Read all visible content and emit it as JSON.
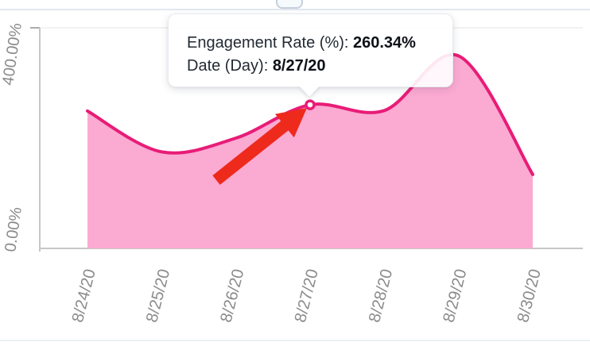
{
  "tooltip": {
    "line1_label": "Engagement Rate (%): ",
    "line1_value": "260.34%",
    "line2_label": "Date (Day): ",
    "line2_value": "8/27/20"
  },
  "chart_data": {
    "type": "area",
    "title": "",
    "xlabel": "Date (Day)",
    "ylabel": "Engagement Rate (%)",
    "categories": [
      "8/24/20",
      "8/25/20",
      "8/26/20",
      "8/27/20",
      "8/28/20",
      "8/29/20",
      "8/30/20"
    ],
    "series": [
      {
        "name": "Engagement Rate (%)",
        "values": [
          249,
          175,
          200,
          260.34,
          250,
          349,
          134
        ]
      }
    ],
    "ylim": [
      0,
      400
    ],
    "y_ticks": [
      {
        "value": 400,
        "label": "400.00%"
      },
      {
        "value": 0,
        "label": "0.00%"
      }
    ],
    "grid": "top-gridline-only",
    "legend": "none",
    "highlight_point": {
      "index": 3,
      "category": "8/27/20",
      "value": 260.34
    },
    "annotation": {
      "type": "arrow",
      "points_at": "8/27/20"
    },
    "colors": {
      "line": "#e81c77",
      "fill": "#fbaad2",
      "marker_fill": "#ffffff",
      "arrow": "#ee2a1c",
      "axis": "#c6c6c6",
      "tick": "#ababab",
      "gridline": "#ededed",
      "tick_label": "#8b8b8b"
    }
  }
}
